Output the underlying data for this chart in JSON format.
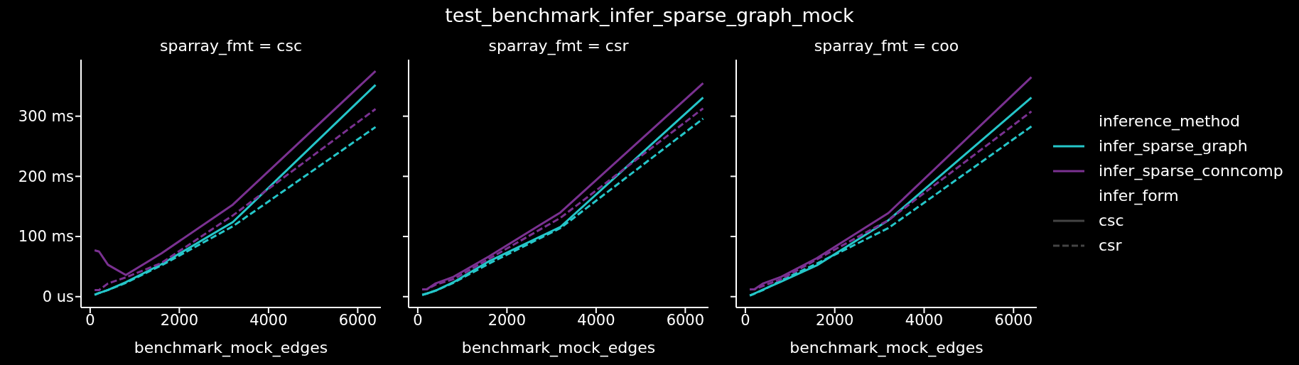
{
  "chart_data": [
    {
      "type": "line",
      "subtitle": "sparray_fmt = csc",
      "xlabel": "benchmark_mock_edges",
      "x": [
        100,
        200,
        400,
        800,
        1600,
        3200,
        6400
      ],
      "xlim": [
        -205,
        6520
      ],
      "xticks": [
        0,
        2000,
        4000,
        6000
      ],
      "ylim": [
        -18,
        394
      ],
      "yticks": [
        {
          "value": 0,
          "label": "0 us"
        },
        {
          "value": 100,
          "label": "100 ms"
        },
        {
          "value": 200,
          "label": "200 ms"
        },
        {
          "value": 300,
          "label": "300 ms"
        }
      ],
      "legend": false,
      "series": [
        {
          "color": "#25c6c9",
          "line_style": "solid",
          "values": [
            3,
            6,
            11,
            24,
            54,
            124,
            352
          ]
        },
        {
          "color": "#7a3191",
          "line_style": "solid",
          "values": [
            77,
            75,
            53,
            36,
            72,
            153,
            375
          ]
        },
        {
          "color": "#25c6c9",
          "line_style": "dashed",
          "values": [
            3,
            6,
            11,
            23,
            52,
            117,
            282
          ]
        },
        {
          "color": "#7a3191",
          "line_style": "dashed",
          "values": [
            11,
            11,
            22,
            32,
            56,
            135,
            312
          ]
        }
      ]
    },
    {
      "type": "line",
      "title": "test_benchmark_infer_sparse_graph_mock",
      "subtitle": "sparray_fmt = csr",
      "xlabel": "benchmark_mock_edges",
      "x": [
        100,
        200,
        400,
        800,
        1600,
        3200,
        6400
      ],
      "xlim": [
        -205,
        6520
      ],
      "xticks": [
        0,
        2000,
        4000,
        6000
      ],
      "ylim": [
        -18,
        394
      ],
      "yticks": [
        {
          "value": 0,
          "label": null
        },
        {
          "value": 100,
          "label": null
        },
        {
          "value": 200,
          "label": null
        },
        {
          "value": 300,
          "label": null
        }
      ],
      "tick_labels": "x",
      "legend": false,
      "series": [
        {
          "color": "#25c6c9",
          "line_style": "solid",
          "values": [
            3,
            5,
            10,
            24,
            59,
            116,
            331
          ]
        },
        {
          "color": "#7a3191",
          "line_style": "solid",
          "values": [
            12,
            12,
            22,
            33,
            67,
            140,
            355
          ]
        },
        {
          "color": "#25c6c9",
          "line_style": "dashed",
          "values": [
            3,
            5,
            10,
            23,
            55,
            114,
            296
          ]
        },
        {
          "color": "#7a3191",
          "line_style": "dashed",
          "values": [
            12,
            12,
            20,
            29,
            63,
            131,
            313
          ]
        }
      ]
    },
    {
      "type": "line",
      "subtitle": "sparray_fmt = coo",
      "xlabel": "benchmark_mock_edges",
      "x": [
        100,
        200,
        400,
        800,
        1600,
        3200,
        6400
      ],
      "xlim": [
        -205,
        6520
      ],
      "xticks": [
        0,
        2000,
        4000,
        6000
      ],
      "ylim": [
        -18,
        394
      ],
      "yticks": [
        {
          "value": 0,
          "label": null
        },
        {
          "value": 100,
          "label": null
        },
        {
          "value": 200,
          "label": null
        },
        {
          "value": 300,
          "label": null
        }
      ],
      "tick_labels": "x",
      "legend": "right",
      "legend_title": "inference_method",
      "annotations": [
        "infer_form",
        "csc",
        "csr"
      ],
      "series": [
        {
          "name": "infer_sparse_graph",
          "color": "#25c6c9",
          "line_style": "solid",
          "values": [
            2,
            5,
            12,
            25,
            52,
            127,
            331
          ]
        },
        {
          "name": "infer_sparse_conncomp",
          "color": "#7a3191",
          "line_style": "solid",
          "values": [
            12,
            12,
            22,
            33,
            64,
            139,
            365
          ]
        },
        {
          "color": "#25c6c9",
          "line_style": "dashed",
          "values": [
            2,
            5,
            11,
            27,
            55,
            114,
            283
          ]
        },
        {
          "color": "#7a3191",
          "line_style": "dashed",
          "values": [
            12,
            12,
            18,
            29,
            62,
            127,
            308
          ]
        }
      ]
    }
  ]
}
